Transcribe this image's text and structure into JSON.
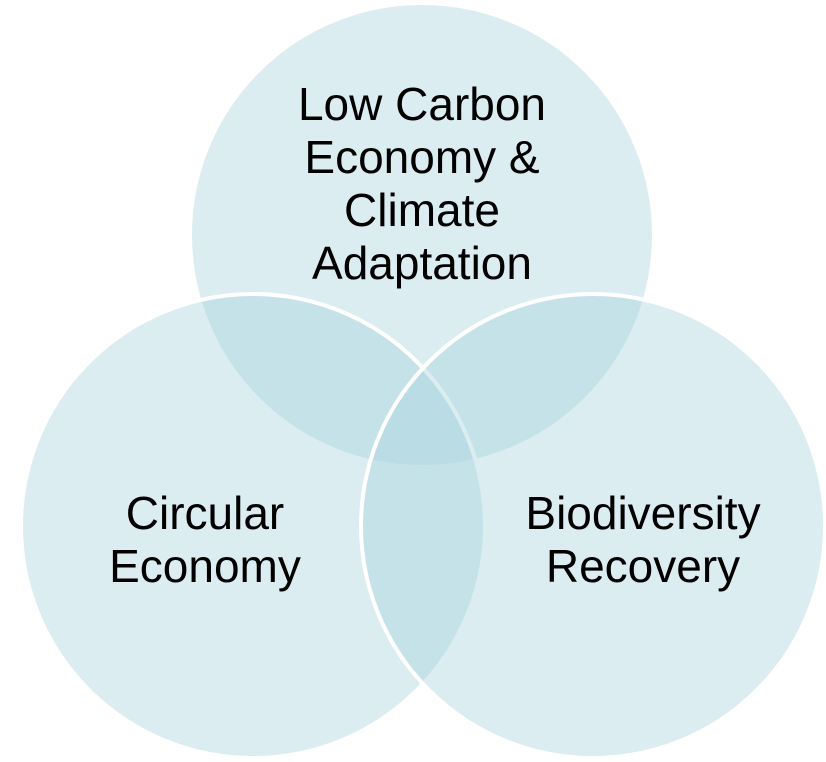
{
  "nodes": [
    {
      "label_lines": [
        "Low Carbon",
        "Economy &",
        "Climate",
        "Adaptation"
      ]
    },
    {
      "label_lines": [
        "Circular",
        "Economy"
      ]
    },
    {
      "label_lines": [
        "Biodiversity",
        "Recovery"
      ]
    }
  ]
}
